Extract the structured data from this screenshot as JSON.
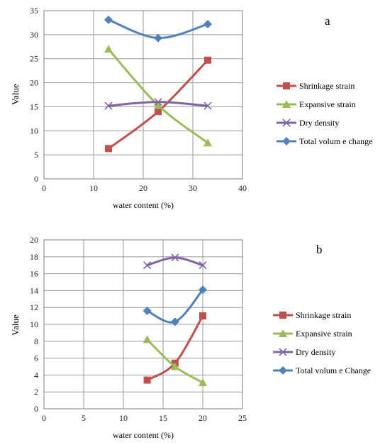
{
  "chart_data": [
    {
      "type": "line",
      "panel_label": "a",
      "xlabel": "water content (%)",
      "ylabel": "Value",
      "xlim": [
        0,
        40
      ],
      "ylim": [
        0,
        35
      ],
      "xticks": [
        0,
        10,
        20,
        30,
        40
      ],
      "yticks": [
        0,
        5,
        10,
        15,
        20,
        25,
        30,
        35
      ],
      "grid": true,
      "legend_position": "right",
      "series": [
        {
          "name": "Shrinkage strain",
          "color": "#c0504d",
          "marker": "square",
          "points": [
            [
              13,
              6.3
            ],
            [
              23,
              14
            ],
            [
              33,
              24.7
            ]
          ]
        },
        {
          "name": "Expansive strain",
          "color": "#9bbb59",
          "marker": "triangle",
          "points": [
            [
              13,
              27
            ],
            [
              23,
              15.3
            ],
            [
              33,
              7.5
            ]
          ]
        },
        {
          "name": "Dry density",
          "color": "#8064a2",
          "marker": "x",
          "points": [
            [
              13,
              15.2
            ],
            [
              23,
              16
            ],
            [
              33,
              15.2
            ]
          ]
        },
        {
          "name": "Total volum e change",
          "color": "#4f81bd",
          "marker": "diamond",
          "points": [
            [
              13,
              33.1
            ],
            [
              23,
              29.3
            ],
            [
              33,
              32.2
            ]
          ]
        }
      ]
    },
    {
      "type": "line",
      "panel_label": "b",
      "xlabel": "water content (%)",
      "ylabel": "Value",
      "xlim": [
        0,
        25
      ],
      "ylim": [
        0,
        20
      ],
      "xticks": [
        0,
        5,
        10,
        15,
        20,
        25
      ],
      "yticks": [
        0,
        2,
        4,
        6,
        8,
        10,
        12,
        14,
        16,
        18,
        20
      ],
      "grid": true,
      "legend_position": "right",
      "series": [
        {
          "name": "Shrinkage strain",
          "color": "#c0504d",
          "marker": "square",
          "points": [
            [
              13,
              3.4
            ],
            [
              16.5,
              5.4
            ],
            [
              20,
              11
            ]
          ]
        },
        {
          "name": "Expansive strain",
          "color": "#9bbb59",
          "marker": "triangle",
          "points": [
            [
              13,
              8.2
            ],
            [
              16.5,
              5
            ],
            [
              20,
              3.1
            ]
          ]
        },
        {
          "name": "Dry density",
          "color": "#8064a2",
          "marker": "x",
          "points": [
            [
              13,
              17
            ],
            [
              16.5,
              17.9
            ],
            [
              20,
              17
            ]
          ]
        },
        {
          "name": "Total volum e Change",
          "color": "#4f81bd",
          "marker": "diamond",
          "points": [
            [
              13,
              11.6
            ],
            [
              16.5,
              10.3
            ],
            [
              20,
              14.1
            ]
          ]
        }
      ]
    }
  ]
}
